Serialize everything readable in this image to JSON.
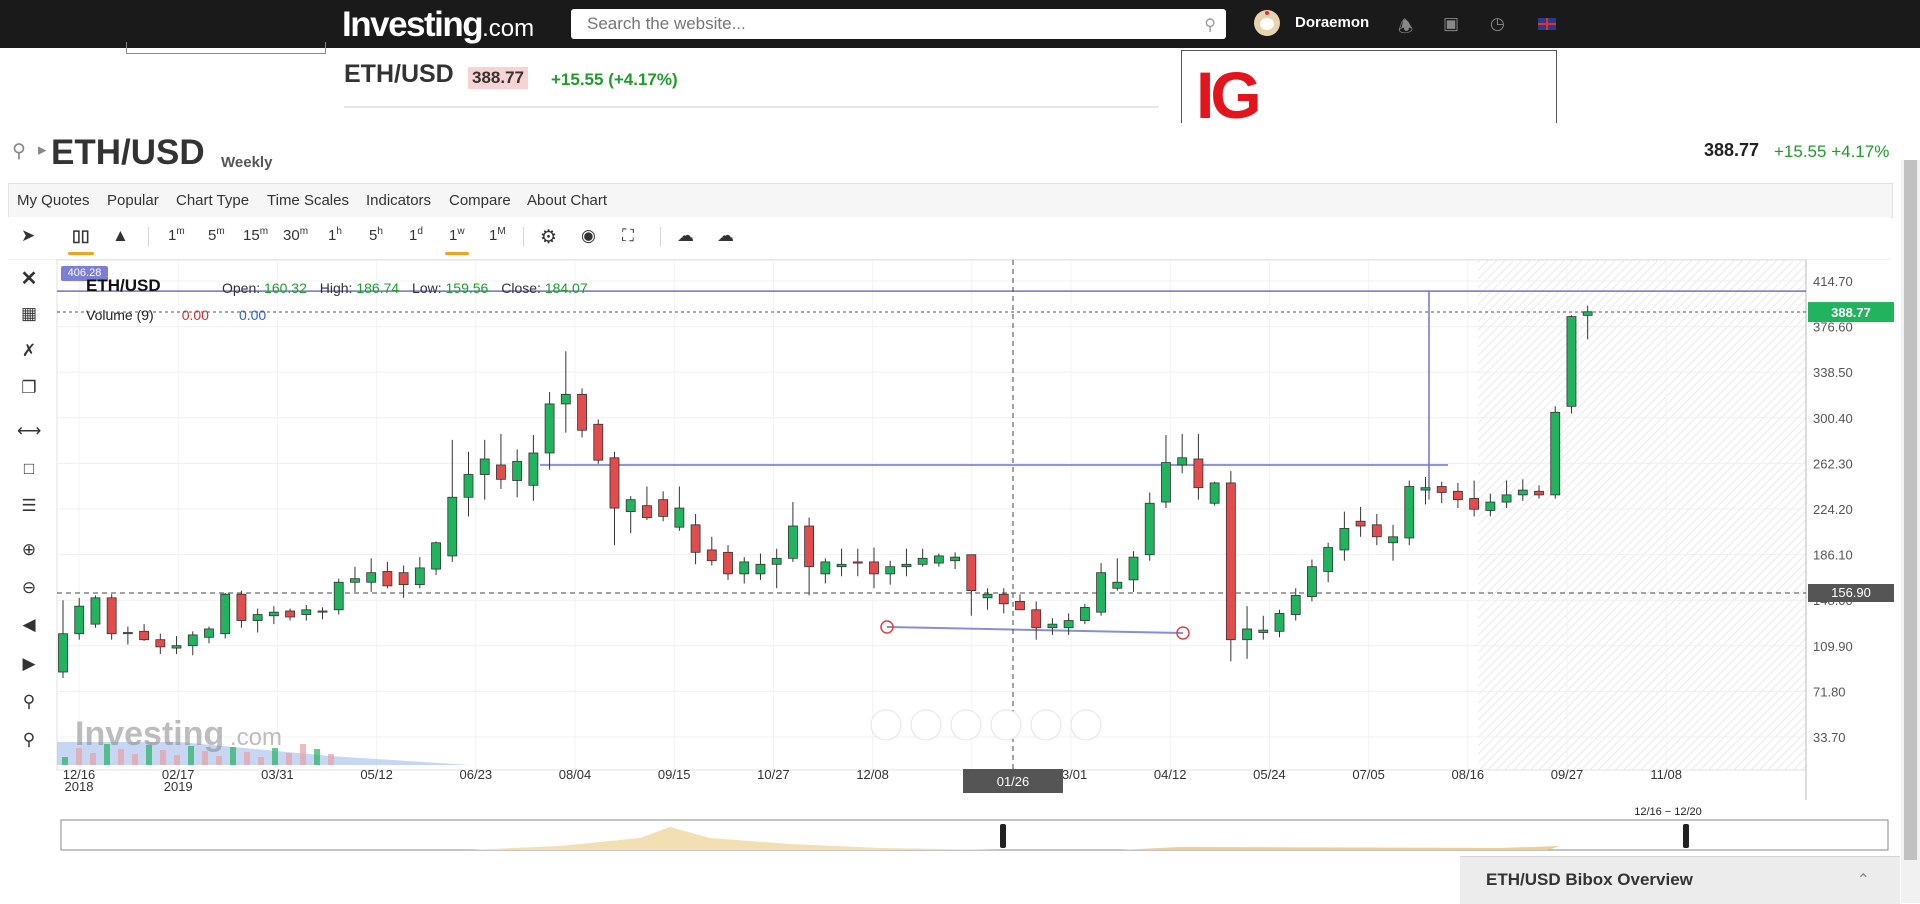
{
  "topbar": {
    "logo_text": "Investing",
    "logo_suffix": ".com",
    "search_placeholder": "Search the website...",
    "username": "Doraemon"
  },
  "header": {
    "pair": "ETH/USD",
    "price": "388.77",
    "change": "+15.55 (+4.17%)",
    "ad_text": "IG"
  },
  "chart_header": {
    "title": "ETH/USD",
    "timeframe": "Weekly",
    "price": "388.77",
    "change": "+15.55 +4.17%"
  },
  "menu": [
    "My Quotes",
    "Popular",
    "Chart Type",
    "Time Scales",
    "Indicators",
    "Compare",
    "About Chart"
  ],
  "toolbar": {
    "intervals": [
      {
        "label": "1",
        "sup": "m"
      },
      {
        "label": "5",
        "sup": "m"
      },
      {
        "label": "15",
        "sup": "m"
      },
      {
        "label": "30",
        "sup": "m"
      },
      {
        "label": "1",
        "sup": "h"
      },
      {
        "label": "5",
        "sup": "h"
      },
      {
        "label": "1",
        "sup": "d"
      },
      {
        "label": "1",
        "sup": "w"
      },
      {
        "label": "1",
        "sup": "M"
      }
    ],
    "selected_interval": "1w"
  },
  "legend": {
    "pair": "ETH/USD",
    "open_label": "Open:",
    "open": "160.32",
    "high_label": "High:",
    "high": "186.74",
    "low_label": "Low:",
    "low": "159.56",
    "close_label": "Close:",
    "close": "184.07",
    "volume_label": "Volume (9)",
    "volume_a": "0.00",
    "volume_b": "0.00",
    "top_tag": "406.28"
  },
  "chart_data": {
    "type": "candlestick",
    "title": "ETH/USD",
    "timeframe": "Weekly",
    "y_ticks": [
      414.7,
      376.6,
      338.5,
      300.4,
      262.3,
      224.2,
      186.1,
      148.0,
      109.9,
      71.8,
      33.7
    ],
    "y_tick_labels": [
      "414.70",
      "376.60",
      "338.50",
      "300.40",
      "262.30",
      "224.20",
      "186.10",
      "148.00",
      "109.90",
      "71.80",
      "33.70"
    ],
    "x_tick_labels": [
      "12/16",
      "02/17",
      "03/31",
      "05/12",
      "06/23",
      "08/04",
      "09/15",
      "10/27",
      "12/08",
      "01/26",
      "03/01",
      "04/12",
      "05/24",
      "07/05",
      "08/16",
      "09/27",
      "11/08"
    ],
    "x_year_labels": {
      "12/16": "2018",
      "02/17": "2019"
    },
    "crosshair_x_label": "01/26",
    "current_price_label": "388.77",
    "crosshair_price_label": "156.90",
    "horizontal_levels": [
      406.28,
      261.0
    ],
    "grid": true,
    "candles": [
      {
        "o": 88,
        "h": 148,
        "l": 83,
        "c": 120
      },
      {
        "o": 120,
        "h": 150,
        "l": 115,
        "c": 143
      },
      {
        "o": 128,
        "h": 152,
        "l": 125,
        "c": 150
      },
      {
        "o": 150,
        "h": 153,
        "l": 115,
        "c": 120
      },
      {
        "o": 120,
        "h": 126,
        "l": 111,
        "c": 121
      },
      {
        "o": 122,
        "h": 128,
        "l": 114,
        "c": 115
      },
      {
        "o": 115,
        "h": 120,
        "l": 103,
        "c": 109
      },
      {
        "o": 108,
        "h": 118,
        "l": 103,
        "c": 110
      },
      {
        "o": 110,
        "h": 122,
        "l": 102,
        "c": 119
      },
      {
        "o": 117,
        "h": 126,
        "l": 112,
        "c": 124
      },
      {
        "o": 120,
        "h": 154,
        "l": 116,
        "c": 153
      },
      {
        "o": 153,
        "h": 156,
        "l": 125,
        "c": 131
      },
      {
        "o": 131,
        "h": 141,
        "l": 121,
        "c": 136
      },
      {
        "o": 135,
        "h": 143,
        "l": 128,
        "c": 138
      },
      {
        "o": 139,
        "h": 141,
        "l": 131,
        "c": 134
      },
      {
        "o": 136,
        "h": 144,
        "l": 131,
        "c": 140
      },
      {
        "o": 138,
        "h": 142,
        "l": 132,
        "c": 139
      },
      {
        "o": 140,
        "h": 166,
        "l": 136,
        "c": 163
      },
      {
        "o": 163,
        "h": 176,
        "l": 155,
        "c": 166
      },
      {
        "o": 163,
        "h": 183,
        "l": 155,
        "c": 171
      },
      {
        "o": 172,
        "h": 180,
        "l": 158,
        "c": 160
      },
      {
        "o": 171,
        "h": 177,
        "l": 150,
        "c": 161
      },
      {
        "o": 161,
        "h": 184,
        "l": 158,
        "c": 175
      },
      {
        "o": 174,
        "h": 197,
        "l": 169,
        "c": 196
      },
      {
        "o": 185,
        "h": 282,
        "l": 180,
        "c": 234
      },
      {
        "o": 234,
        "h": 272,
        "l": 218,
        "c": 253
      },
      {
        "o": 253,
        "h": 282,
        "l": 232,
        "c": 266
      },
      {
        "o": 261,
        "h": 287,
        "l": 241,
        "c": 249
      },
      {
        "o": 248,
        "h": 274,
        "l": 234,
        "c": 264
      },
      {
        "o": 244,
        "h": 286,
        "l": 231,
        "c": 271
      },
      {
        "o": 271,
        "h": 322,
        "l": 257,
        "c": 312
      },
      {
        "o": 312,
        "h": 356,
        "l": 288,
        "c": 320
      },
      {
        "o": 320,
        "h": 325,
        "l": 284,
        "c": 290
      },
      {
        "o": 295,
        "h": 299,
        "l": 262,
        "c": 265
      },
      {
        "o": 267,
        "h": 272,
        "l": 194,
        "c": 225
      },
      {
        "o": 222,
        "h": 235,
        "l": 204,
        "c": 232
      },
      {
        "o": 227,
        "h": 243,
        "l": 215,
        "c": 217
      },
      {
        "o": 232,
        "h": 239,
        "l": 214,
        "c": 218
      },
      {
        "o": 209,
        "h": 243,
        "l": 206,
        "c": 225
      },
      {
        "o": 211,
        "h": 220,
        "l": 178,
        "c": 188
      },
      {
        "o": 190,
        "h": 201,
        "l": 177,
        "c": 181
      },
      {
        "o": 188,
        "h": 194,
        "l": 165,
        "c": 170
      },
      {
        "o": 170,
        "h": 184,
        "l": 162,
        "c": 180
      },
      {
        "o": 170,
        "h": 187,
        "l": 165,
        "c": 178
      },
      {
        "o": 178,
        "h": 191,
        "l": 158,
        "c": 183
      },
      {
        "o": 183,
        "h": 230,
        "l": 180,
        "c": 210
      },
      {
        "o": 210,
        "h": 217,
        "l": 152,
        "c": 176
      },
      {
        "o": 170,
        "h": 183,
        "l": 162,
        "c": 180
      },
      {
        "o": 176,
        "h": 191,
        "l": 168,
        "c": 178
      },
      {
        "o": 180,
        "h": 191,
        "l": 168,
        "c": 179
      },
      {
        "o": 180,
        "h": 192,
        "l": 158,
        "c": 170
      },
      {
        "o": 170,
        "h": 181,
        "l": 161,
        "c": 176
      },
      {
        "o": 176,
        "h": 191,
        "l": 168,
        "c": 178
      },
      {
        "o": 178,
        "h": 191,
        "l": 176,
        "c": 183
      },
      {
        "o": 179,
        "h": 187,
        "l": 176,
        "c": 185
      },
      {
        "o": 181,
        "h": 188,
        "l": 174,
        "c": 184
      },
      {
        "o": 186,
        "h": 186,
        "l": 135,
        "c": 156
      },
      {
        "o": 150,
        "h": 158,
        "l": 140,
        "c": 153
      },
      {
        "o": 153,
        "h": 158,
        "l": 137,
        "c": 145
      },
      {
        "o": 147,
        "h": 153,
        "l": 143,
        "c": 140
      },
      {
        "o": 140,
        "h": 147,
        "l": 115,
        "c": 125
      },
      {
        "o": 125,
        "h": 133,
        "l": 119,
        "c": 128
      },
      {
        "o": 125,
        "h": 137,
        "l": 119,
        "c": 131
      },
      {
        "o": 131,
        "h": 145,
        "l": 128,
        "c": 142
      },
      {
        "o": 138,
        "h": 179,
        "l": 135,
        "c": 171
      },
      {
        "o": 158,
        "h": 183,
        "l": 156,
        "c": 163
      },
      {
        "o": 165,
        "h": 189,
        "l": 155,
        "c": 184
      },
      {
        "o": 186,
        "h": 238,
        "l": 181,
        "c": 229
      },
      {
        "o": 230,
        "h": 286,
        "l": 225,
        "c": 263
      },
      {
        "o": 261,
        "h": 287,
        "l": 254,
        "c": 267
      },
      {
        "o": 266,
        "h": 287,
        "l": 232,
        "c": 242
      },
      {
        "o": 229,
        "h": 247,
        "l": 227,
        "c": 246
      },
      {
        "o": 246,
        "h": 256,
        "l": 97,
        "c": 115
      },
      {
        "o": 115,
        "h": 143,
        "l": 99,
        "c": 124
      },
      {
        "o": 121,
        "h": 135,
        "l": 115,
        "c": 123
      },
      {
        "o": 122,
        "h": 140,
        "l": 117,
        "c": 137
      },
      {
        "o": 136,
        "h": 158,
        "l": 131,
        "c": 152
      },
      {
        "o": 151,
        "h": 182,
        "l": 147,
        "c": 176
      },
      {
        "o": 172,
        "h": 196,
        "l": 163,
        "c": 192
      },
      {
        "o": 190,
        "h": 222,
        "l": 181,
        "c": 208
      },
      {
        "o": 214,
        "h": 226,
        "l": 201,
        "c": 210
      },
      {
        "o": 211,
        "h": 220,
        "l": 194,
        "c": 201
      },
      {
        "o": 196,
        "h": 211,
        "l": 181,
        "c": 201
      },
      {
        "o": 200,
        "h": 248,
        "l": 194,
        "c": 243
      },
      {
        "o": 240,
        "h": 251,
        "l": 228,
        "c": 242
      },
      {
        "o": 243,
        "h": 247,
        "l": 229,
        "c": 238
      },
      {
        "o": 239,
        "h": 246,
        "l": 225,
        "c": 232
      },
      {
        "o": 233,
        "h": 248,
        "l": 218,
        "c": 224
      },
      {
        "o": 223,
        "h": 237,
        "l": 218,
        "c": 230
      },
      {
        "o": 230,
        "h": 248,
        "l": 225,
        "c": 236
      },
      {
        "o": 236,
        "h": 249,
        "l": 231,
        "c": 240
      },
      {
        "o": 239,
        "h": 244,
        "l": 233,
        "c": 236
      },
      {
        "o": 236,
        "h": 310,
        "l": 233,
        "c": 305
      },
      {
        "o": 310,
        "h": 386,
        "l": 304,
        "c": 385
      },
      {
        "o": 386,
        "h": 394,
        "l": 366,
        "c": 389
      }
    ]
  },
  "bottom_panel": {
    "label": "ETH/USD Bibox Overview"
  },
  "range_label": "12/16 − 12/20"
}
